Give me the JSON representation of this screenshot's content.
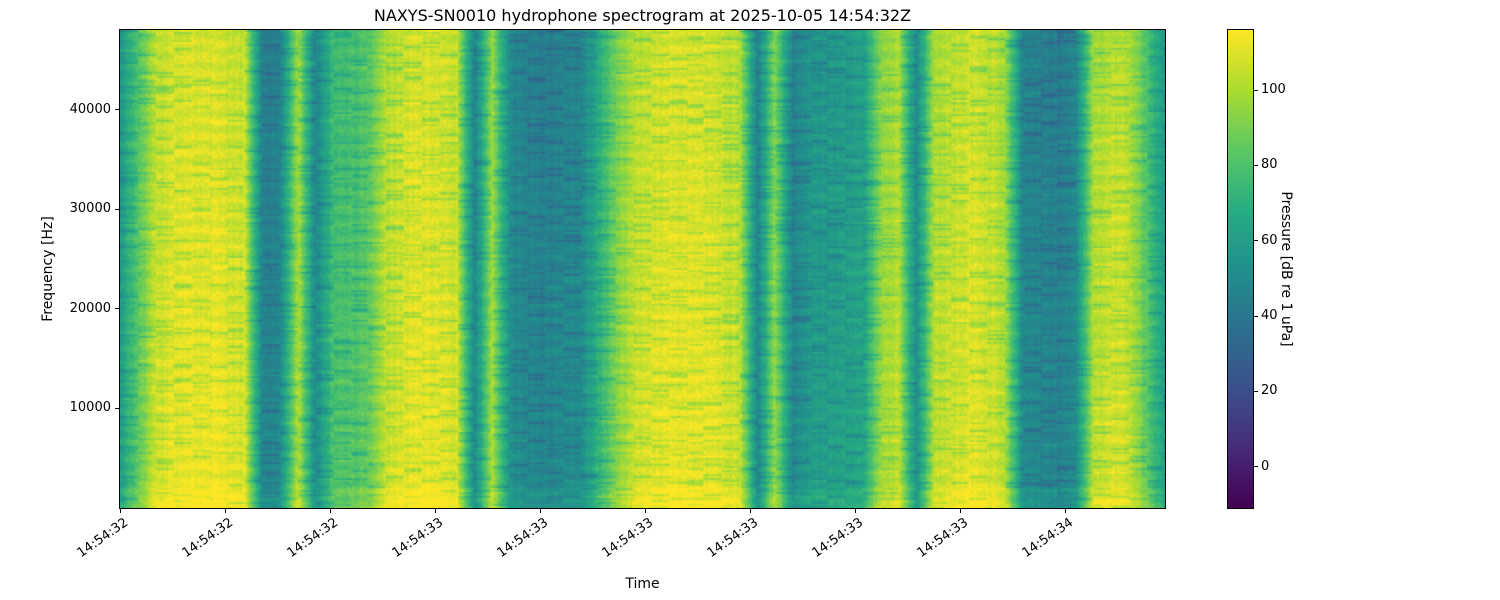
{
  "chart_data": {
    "type": "heatmap",
    "subtype": "spectrogram",
    "title": "NAXYS-SN0010 hydrophone spectrogram at 2025-10-05 14:54:32Z",
    "xlabel": "Time",
    "ylabel": "Frequency [Hz]",
    "x_tick_labels": [
      "14:54:32",
      "14:54:32",
      "14:54:32",
      "14:54:33",
      "14:54:33",
      "14:54:33",
      "14:54:33",
      "14:54:33",
      "14:54:33",
      "14:54:34"
    ],
    "y_ticks_hz": [
      10000,
      20000,
      30000,
      40000
    ],
    "freq_range_hz": [
      0,
      48000
    ],
    "value_range_db": [
      -11,
      116
    ],
    "grid": false,
    "legend": "none",
    "colorbar": {
      "label": "Pressure [dB re 1 uPa]",
      "ticks": [
        0,
        20,
        40,
        60,
        80,
        100
      ]
    },
    "colormap": {
      "name": "viridis",
      "stops": [
        [
          0.0,
          68,
          1,
          84
        ],
        [
          0.125,
          71,
          44,
          122
        ],
        [
          0.25,
          59,
          81,
          139
        ],
        [
          0.375,
          44,
          113,
          142
        ],
        [
          0.5,
          33,
          144,
          141
        ],
        [
          0.625,
          39,
          173,
          129
        ],
        [
          0.75,
          92,
          200,
          99
        ],
        [
          0.875,
          170,
          220,
          50
        ],
        [
          1.0,
          253,
          231,
          37
        ]
      ]
    },
    "time_profile_db": [
      60,
      82,
      104,
      108,
      110,
      110,
      108,
      106,
      44,
      46,
      100,
      48,
      76,
      78,
      82,
      102,
      107,
      110,
      109,
      106,
      46,
      98,
      50,
      46,
      44,
      46,
      48,
      68,
      90,
      103,
      107,
      110,
      110,
      108,
      106,
      103,
      46,
      94,
      46,
      56,
      58,
      60,
      62,
      96,
      101,
      50,
      100,
      104,
      108,
      106,
      100,
      48,
      46,
      44,
      48,
      100,
      105,
      103,
      82,
      58
    ]
  }
}
